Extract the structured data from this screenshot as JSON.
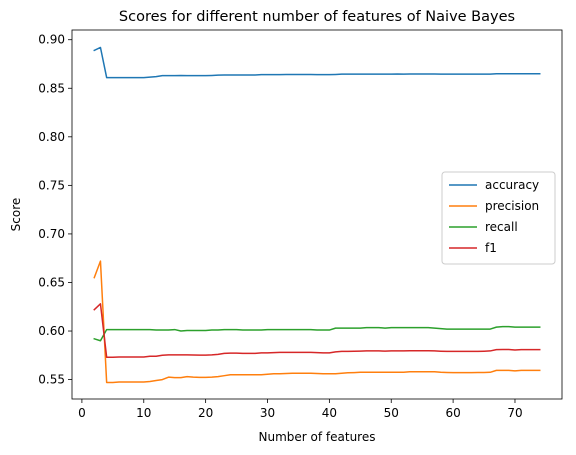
{
  "chart_data": {
    "type": "line",
    "title": "Scores for different number of features of Naive Bayes",
    "xlabel": "Number of features",
    "ylabel": "Score",
    "xlim": [
      -1.6,
      77.6
    ],
    "ylim": [
      0.53,
      0.91
    ],
    "xticks": [
      0,
      10,
      20,
      30,
      40,
      50,
      60,
      70
    ],
    "yticks": [
      0.55,
      0.6,
      0.65,
      0.7,
      0.75,
      0.8,
      0.85,
      0.9
    ],
    "ytick_labels": [
      "0.55",
      "0.60",
      "0.65",
      "0.70",
      "0.75",
      "0.80",
      "0.85",
      "0.90"
    ],
    "grid": false,
    "legend_position": "center-right",
    "x": [
      2,
      3,
      4,
      5,
      6,
      7,
      8,
      9,
      10,
      11,
      12,
      13,
      14,
      15,
      16,
      17,
      18,
      19,
      20,
      21,
      22,
      23,
      24,
      25,
      26,
      27,
      28,
      29,
      30,
      31,
      32,
      33,
      34,
      35,
      36,
      37,
      38,
      39,
      40,
      41,
      42,
      43,
      44,
      45,
      46,
      47,
      48,
      49,
      50,
      51,
      52,
      53,
      54,
      55,
      56,
      57,
      58,
      59,
      60,
      61,
      62,
      63,
      64,
      65,
      66,
      67,
      68,
      69,
      70,
      71,
      72,
      73,
      74
    ],
    "series": [
      {
        "name": "accuracy",
        "color": "#1f77b4",
        "values": [
          0.889,
          0.892,
          0.861,
          0.861,
          0.861,
          0.861,
          0.861,
          0.861,
          0.861,
          0.8615,
          0.862,
          0.863,
          0.863,
          0.863,
          0.8632,
          0.863,
          0.863,
          0.863,
          0.863,
          0.8632,
          0.8635,
          0.8637,
          0.8637,
          0.8637,
          0.8637,
          0.8637,
          0.8637,
          0.864,
          0.864,
          0.864,
          0.864,
          0.8642,
          0.8642,
          0.8642,
          0.8642,
          0.8642,
          0.864,
          0.864,
          0.864,
          0.8642,
          0.8645,
          0.8645,
          0.8645,
          0.8645,
          0.8645,
          0.8645,
          0.8645,
          0.8645,
          0.8645,
          0.8647,
          0.8645,
          0.8647,
          0.8647,
          0.8647,
          0.8647,
          0.8647,
          0.8645,
          0.8645,
          0.8645,
          0.8645,
          0.8645,
          0.8645,
          0.8645,
          0.8645,
          0.8645,
          0.865,
          0.865,
          0.865,
          0.865,
          0.865,
          0.865,
          0.865,
          0.865
        ]
      },
      {
        "name": "precision",
        "color": "#ff7f0e",
        "values": [
          0.655,
          0.672,
          0.547,
          0.547,
          0.5475,
          0.5475,
          0.5475,
          0.5475,
          0.5475,
          0.548,
          0.549,
          0.55,
          0.5525,
          0.552,
          0.552,
          0.553,
          0.5525,
          0.5523,
          0.5523,
          0.5525,
          0.553,
          0.554,
          0.555,
          0.555,
          0.555,
          0.555,
          0.555,
          0.555,
          0.5555,
          0.556,
          0.556,
          0.5562,
          0.5565,
          0.5565,
          0.5565,
          0.5565,
          0.5563,
          0.556,
          0.556,
          0.556,
          0.5565,
          0.557,
          0.5572,
          0.5575,
          0.5575,
          0.5575,
          0.5575,
          0.5575,
          0.5575,
          0.5575,
          0.5575,
          0.558,
          0.558,
          0.558,
          0.558,
          0.558,
          0.5575,
          0.5573,
          0.5572,
          0.5572,
          0.5572,
          0.5572,
          0.5573,
          0.5573,
          0.5575,
          0.5595,
          0.5595,
          0.5595,
          0.559,
          0.5595,
          0.5595,
          0.5595,
          0.5595
        ]
      },
      {
        "name": "recall",
        "color": "#2ca02c",
        "values": [
          0.592,
          0.59,
          0.6015,
          0.6015,
          0.6015,
          0.6015,
          0.6015,
          0.6015,
          0.6015,
          0.6015,
          0.601,
          0.601,
          0.601,
          0.6015,
          0.6,
          0.6005,
          0.6005,
          0.6005,
          0.6005,
          0.601,
          0.601,
          0.6015,
          0.6015,
          0.6015,
          0.601,
          0.601,
          0.601,
          0.601,
          0.6015,
          0.6015,
          0.6015,
          0.6015,
          0.6015,
          0.6015,
          0.6015,
          0.6015,
          0.601,
          0.601,
          0.601,
          0.603,
          0.603,
          0.603,
          0.603,
          0.603,
          0.6035,
          0.6035,
          0.6035,
          0.603,
          0.6035,
          0.6035,
          0.6035,
          0.6035,
          0.6035,
          0.6035,
          0.6035,
          0.603,
          0.6025,
          0.602,
          0.602,
          0.602,
          0.602,
          0.602,
          0.602,
          0.602,
          0.602,
          0.604,
          0.6045,
          0.6045,
          0.604,
          0.604,
          0.604,
          0.604,
          0.604
        ]
      },
      {
        "name": "f1",
        "color": "#d62728",
        "values": [
          0.622,
          0.628,
          0.573,
          0.573,
          0.5733,
          0.5733,
          0.5733,
          0.5733,
          0.5733,
          0.574,
          0.574,
          0.575,
          0.5755,
          0.5755,
          0.5755,
          0.5755,
          0.5753,
          0.5752,
          0.5752,
          0.5755,
          0.576,
          0.577,
          0.5772,
          0.5772,
          0.577,
          0.577,
          0.577,
          0.5775,
          0.5775,
          0.5778,
          0.578,
          0.578,
          0.578,
          0.578,
          0.578,
          0.578,
          0.5778,
          0.5775,
          0.5775,
          0.5785,
          0.579,
          0.579,
          0.5792,
          0.5793,
          0.5795,
          0.5795,
          0.5795,
          0.5793,
          0.5795,
          0.5795,
          0.5795,
          0.5797,
          0.5797,
          0.5797,
          0.5797,
          0.5795,
          0.5792,
          0.579,
          0.579,
          0.579,
          0.579,
          0.579,
          0.579,
          0.5792,
          0.5795,
          0.5808,
          0.581,
          0.581,
          0.5805,
          0.5808,
          0.5808,
          0.5808,
          0.5808
        ]
      }
    ]
  }
}
